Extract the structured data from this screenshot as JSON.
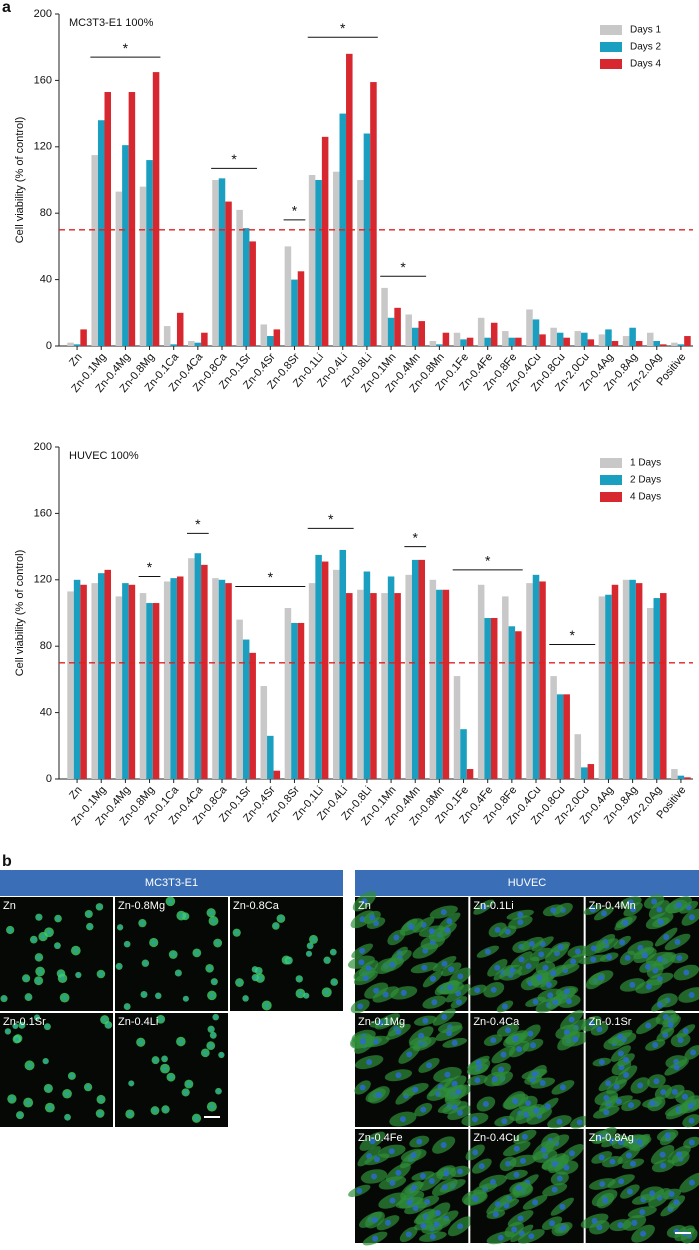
{
  "panel_labels": [
    "a",
    "b"
  ],
  "chart_data": [
    {
      "type": "bar",
      "title": "MC3T3-E1 100%",
      "y_label": "Cell viability (% of control)",
      "categories": [
        "Zn",
        "Zn-0.1Mg",
        "Zn-0.4Mg",
        "Zn-0.8Mg",
        "Zn-0.1Ca",
        "Zn-0.4Ca",
        "Zn-0.8Ca",
        "Zn-0.1Sr",
        "Zn-0.4Sr",
        "Zn-0.8Sr",
        "Zn-0.1Li",
        "Zn-0.4Li",
        "Zn-0.8Li",
        "Zn-0.1Mn",
        "Zn-0.4Mn",
        "Zn-0.8Mn",
        "Zn-0.1Fe",
        "Zn-0.4Fe",
        "Zn-0.8Fe",
        "Zn-0.4Cu",
        "Zn-0.8Cu",
        "Zn-2.0Cu",
        "Zn-0.4Ag",
        "Zn-0.8Ag",
        "Zn-2.0Ag",
        "Positive"
      ],
      "series": [
        {
          "name": "Days 1",
          "color": "#c8c8c8",
          "values": [
            2,
            115,
            93,
            96,
            12,
            3,
            100,
            82,
            13,
            60,
            103,
            105,
            100,
            35,
            19,
            3,
            8,
            17,
            9,
            22,
            11,
            9,
            7,
            6,
            8,
            2
          ]
        },
        {
          "name": "Days 2",
          "color": "#1a9fc0",
          "values": [
            1,
            136,
            121,
            112,
            1,
            2,
            101,
            71,
            6,
            40,
            100,
            140,
            128,
            17,
            11,
            1,
            4,
            5,
            5,
            16,
            8,
            8,
            10,
            11,
            3,
            1
          ]
        },
        {
          "name": "Days 4",
          "color": "#d7282f",
          "values": [
            10,
            153,
            153,
            165,
            20,
            8,
            87,
            63,
            10,
            45,
            126,
            176,
            159,
            23,
            15,
            8,
            5,
            14,
            5,
            7,
            5,
            4,
            3,
            3,
            1,
            6
          ]
        }
      ],
      "ylim": [
        0,
        200
      ],
      "yticks": [
        0,
        40,
        80,
        120,
        160,
        200
      ],
      "reference_line": 70,
      "legend": "upper right",
      "significance": [
        {
          "label": "*",
          "categories": [
            "Zn-0.1Mg",
            "Zn-0.8Mg"
          ],
          "y": 174
        },
        {
          "label": "*",
          "categories": [
            "Zn-0.8Ca",
            "Zn-0.1Sr"
          ],
          "y": 107
        },
        {
          "label": "*",
          "categories": [
            "Zn-0.8Sr",
            "Zn-0.8Sr"
          ],
          "y": 76
        },
        {
          "label": "*",
          "categories": [
            "Zn-0.1Li",
            "Zn-0.8Li"
          ],
          "y": 186
        },
        {
          "label": "*",
          "categories": [
            "Zn-0.1Mn",
            "Zn-0.4Mn"
          ],
          "y": 42
        }
      ]
    },
    {
      "type": "bar",
      "title": "HUVEC 100%",
      "y_label": "Cell viability (% of control)",
      "categories": [
        "Zn",
        "Zn-0.1Mg",
        "Zn-0.4Mg",
        "Zn-0.8Mg",
        "Zn-0.1Ca",
        "Zn-0.4Ca",
        "Zn-0.8Ca",
        "Zn-0.1Sr",
        "Zn-0.4Sr",
        "Zn-0.8Sr",
        "Zn-0.1Li",
        "Zn-0.4Li",
        "Zn-0.8Li",
        "Zn-0.1Mn",
        "Zn-0.4Mn",
        "Zn-0.8Mn",
        "Zn-0.1Fe",
        "Zn-0.4Fe",
        "Zn-0.8Fe",
        "Zn-0.4Cu",
        "Zn-0.8Cu",
        "Zn-2.0Cu",
        "Zn-0.4Ag",
        "Zn-0.8Ag",
        "Zn-2.0Ag",
        "Positive"
      ],
      "series": [
        {
          "name": "1 Days",
          "color": "#c8c8c8",
          "values": [
            113,
            118,
            110,
            112,
            119,
            133,
            121,
            96,
            56,
            103,
            118,
            126,
            114,
            112,
            123,
            120,
            62,
            117,
            110,
            118,
            62,
            27,
            110,
            120,
            103,
            6
          ]
        },
        {
          "name": "2 Days",
          "color": "#1a9fc0",
          "values": [
            120,
            124,
            118,
            106,
            121,
            136,
            120,
            84,
            26,
            94,
            135,
            138,
            125,
            122,
            132,
            114,
            30,
            97,
            92,
            123,
            51,
            7,
            111,
            120,
            109,
            2
          ]
        },
        {
          "name": "4 Days",
          "color": "#d7282f",
          "values": [
            117,
            126,
            117,
            106,
            122,
            129,
            118,
            76,
            5,
            94,
            131,
            112,
            112,
            112,
            132,
            114,
            6,
            97,
            89,
            119,
            51,
            9,
            117,
            118,
            112,
            1
          ]
        }
      ],
      "ylim": [
        0,
        200
      ],
      "yticks": [
        0,
        40,
        80,
        120,
        160,
        200
      ],
      "reference_line": 70,
      "legend": "upper right",
      "significance": [
        {
          "label": "*",
          "categories": [
            "Zn-0.8Mg",
            "Zn-0.8Mg"
          ],
          "y": 122
        },
        {
          "label": "*",
          "categories": [
            "Zn-0.4Ca",
            "Zn-0.4Ca"
          ],
          "y": 148
        },
        {
          "label": "*",
          "categories": [
            "Zn-0.1Sr",
            "Zn-0.8Sr"
          ],
          "y": 116
        },
        {
          "label": "*",
          "categories": [
            "Zn-0.1Li",
            "Zn-0.4Li"
          ],
          "y": 151
        },
        {
          "label": "*",
          "categories": [
            "Zn-0.4Mn",
            "Zn-0.4Mn"
          ],
          "y": 140
        },
        {
          "label": "*",
          "categories": [
            "Zn-0.1Fe",
            "Zn-0.8Fe"
          ],
          "y": 126
        },
        {
          "label": "*",
          "categories": [
            "Zn-0.8Cu",
            "Zn-2.0Cu"
          ],
          "y": 81
        }
      ]
    }
  ],
  "micrographs": [
    {
      "title": "MC3T3-E1",
      "images": [
        "Zn",
        "Zn-0.8Mg",
        "Zn-0.8Ca",
        "Zn-0.1Sr",
        "Zn-0.4Li"
      ]
    },
    {
      "title": "HUVEC",
      "images": [
        "Zn",
        "Zn-0.1Li",
        "Zn-0.4Mn",
        "Zn-0.1Mg",
        "Zn-0.4Ca",
        "Zn-0.1Sr",
        "Zn-0.4Fe",
        "Zn-0.4Cu",
        "Zn-0.8Ag"
      ]
    }
  ]
}
